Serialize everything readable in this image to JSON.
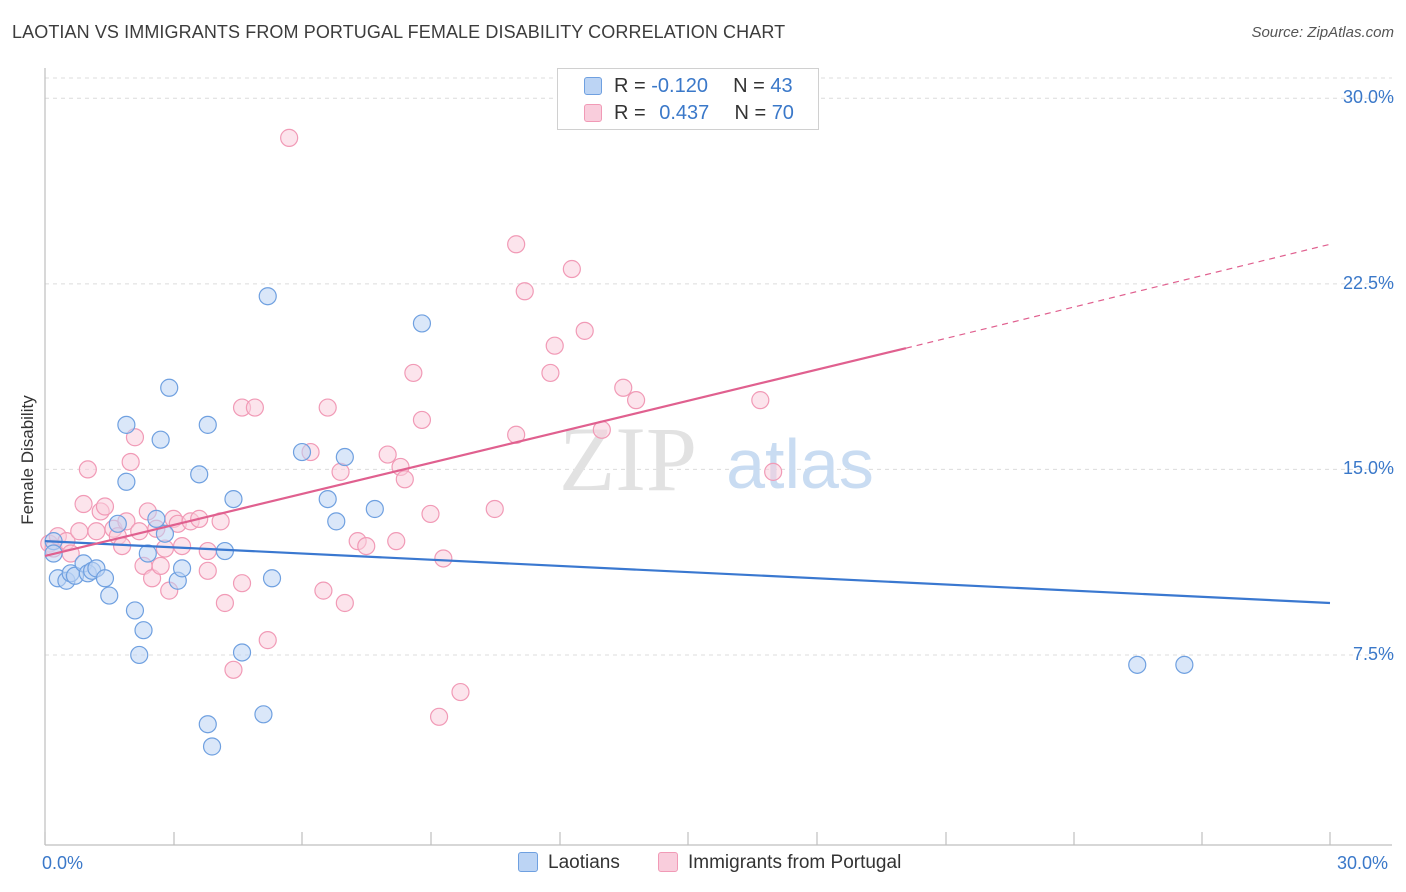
{
  "title": "LAOTIAN VS IMMIGRANTS FROM PORTUGAL FEMALE DISABILITY CORRELATION CHART",
  "source": "Source: ZipAtlas.com",
  "watermark": {
    "zip": "ZIP",
    "atlas": "atlas"
  },
  "legend": {
    "laotians": {
      "r_label": "R =",
      "r_value": "-0.120",
      "n_label": "N =",
      "n_value": "43"
    },
    "portugal": {
      "r_label": "R =",
      "r_value": "0.437",
      "n_label": "N =",
      "n_value": "70"
    }
  },
  "chart_data": {
    "type": "scatter",
    "title": "LAOTIAN VS IMMIGRANTS FROM PORTUGAL FEMALE DISABILITY CORRELATION CHART",
    "xlabel": "",
    "ylabel": "Female Disability",
    "xlim": [
      0,
      30
    ],
    "ylim": [
      0,
      30.5
    ],
    "x_tick_labels": [
      "0.0%",
      "30.0%"
    ],
    "y_ticks": [
      7.5,
      15.0,
      22.5,
      30.0
    ],
    "y_tick_labels": [
      "7.5%",
      "15.0%",
      "22.5%",
      "30.0%"
    ],
    "colors": {
      "laotians": "#6fa0e0",
      "portugal": "#f19ab6",
      "laotians_line": "#3a78d0",
      "portugal_line": "#e0608f"
    },
    "series": [
      {
        "name": "Laotians",
        "r": -0.12,
        "n": 43,
        "trend": {
          "x": [
            0,
            30
          ],
          "y": [
            12.1,
            9.6
          ]
        },
        "points": [
          [
            0.2,
            12.1
          ],
          [
            0.2,
            11.6
          ],
          [
            0.3,
            10.6
          ],
          [
            0.5,
            10.5
          ],
          [
            0.6,
            10.8
          ],
          [
            0.7,
            10.7
          ],
          [
            0.9,
            11.2
          ],
          [
            1.0,
            10.8
          ],
          [
            1.1,
            10.9
          ],
          [
            1.2,
            11.0
          ],
          [
            1.4,
            10.6
          ],
          [
            1.5,
            9.9
          ],
          [
            1.7,
            12.8
          ],
          [
            1.9,
            14.5
          ],
          [
            1.9,
            16.8
          ],
          [
            2.1,
            9.3
          ],
          [
            2.2,
            7.5
          ],
          [
            2.3,
            8.5
          ],
          [
            2.4,
            11.6
          ],
          [
            2.6,
            13.0
          ],
          [
            2.7,
            16.2
          ],
          [
            2.8,
            12.4
          ],
          [
            2.9,
            18.3
          ],
          [
            3.1,
            10.5
          ],
          [
            3.2,
            11.0
          ],
          [
            3.6,
            14.8
          ],
          [
            3.8,
            4.7
          ],
          [
            3.8,
            16.8
          ],
          [
            3.9,
            3.8
          ],
          [
            4.2,
            11.7
          ],
          [
            4.4,
            13.8
          ],
          [
            4.6,
            7.6
          ],
          [
            5.1,
            5.1
          ],
          [
            5.2,
            22.0
          ],
          [
            5.3,
            10.6
          ],
          [
            6.0,
            15.7
          ],
          [
            6.6,
            13.8
          ],
          [
            6.8,
            12.9
          ],
          [
            7.0,
            15.5
          ],
          [
            7.7,
            13.4
          ],
          [
            8.8,
            20.9
          ],
          [
            25.5,
            7.1
          ],
          [
            26.6,
            7.1
          ]
        ]
      },
      {
        "name": "Immigrants from Portugal",
        "r": 0.437,
        "n": 70,
        "trend": {
          "x": [
            0,
            20.1
          ],
          "y": [
            11.5,
            19.9
          ]
        },
        "trend_dashed": {
          "x": [
            20.1,
            30
          ],
          "y": [
            19.9,
            24.1
          ]
        },
        "points": [
          [
            0.1,
            12.0
          ],
          [
            0.2,
            11.8
          ],
          [
            0.3,
            12.3
          ],
          [
            0.5,
            12.1
          ],
          [
            0.6,
            11.6
          ],
          [
            0.8,
            12.5
          ],
          [
            0.9,
            13.6
          ],
          [
            1.0,
            15.0
          ],
          [
            1.2,
            12.5
          ],
          [
            1.3,
            13.3
          ],
          [
            1.4,
            13.5
          ],
          [
            1.6,
            12.6
          ],
          [
            1.7,
            12.3
          ],
          [
            1.8,
            11.9
          ],
          [
            1.9,
            12.9
          ],
          [
            2.0,
            15.3
          ],
          [
            2.1,
            16.3
          ],
          [
            2.2,
            12.5
          ],
          [
            2.3,
            11.1
          ],
          [
            2.4,
            13.3
          ],
          [
            2.5,
            10.6
          ],
          [
            2.6,
            12.6
          ],
          [
            2.7,
            11.1
          ],
          [
            2.8,
            11.8
          ],
          [
            2.9,
            10.1
          ],
          [
            3.0,
            13.0
          ],
          [
            3.1,
            12.8
          ],
          [
            3.2,
            11.9
          ],
          [
            3.4,
            12.9
          ],
          [
            3.6,
            13.0
          ],
          [
            3.8,
            10.9
          ],
          [
            3.8,
            11.7
          ],
          [
            4.1,
            12.9
          ],
          [
            4.2,
            9.6
          ],
          [
            4.4,
            6.9
          ],
          [
            4.6,
            10.4
          ],
          [
            4.6,
            17.5
          ],
          [
            4.9,
            17.5
          ],
          [
            5.2,
            8.1
          ],
          [
            5.7,
            28.4
          ],
          [
            6.2,
            15.7
          ],
          [
            6.5,
            10.1
          ],
          [
            6.6,
            17.5
          ],
          [
            6.9,
            14.9
          ],
          [
            7.0,
            9.6
          ],
          [
            7.3,
            12.1
          ],
          [
            7.5,
            11.9
          ],
          [
            8.0,
            15.6
          ],
          [
            8.2,
            12.1
          ],
          [
            8.3,
            15.1
          ],
          [
            8.4,
            14.6
          ],
          [
            8.6,
            18.9
          ],
          [
            8.8,
            17.0
          ],
          [
            9.0,
            13.2
          ],
          [
            9.2,
            5.0
          ],
          [
            9.3,
            11.4
          ],
          [
            9.7,
            6.0
          ],
          [
            10.5,
            13.4
          ],
          [
            11.0,
            16.4
          ],
          [
            11.0,
            24.1
          ],
          [
            11.2,
            22.2
          ],
          [
            11.8,
            18.9
          ],
          [
            11.9,
            20.0
          ],
          [
            12.3,
            23.1
          ],
          [
            12.6,
            20.6
          ],
          [
            13.0,
            16.6
          ],
          [
            13.5,
            18.3
          ],
          [
            13.8,
            17.8
          ],
          [
            16.7,
            17.8
          ],
          [
            17.0,
            14.9
          ]
        ]
      }
    ]
  },
  "bottom_legend": {
    "laotians": "Laotians",
    "portugal": "Immigrants from Portugal"
  }
}
